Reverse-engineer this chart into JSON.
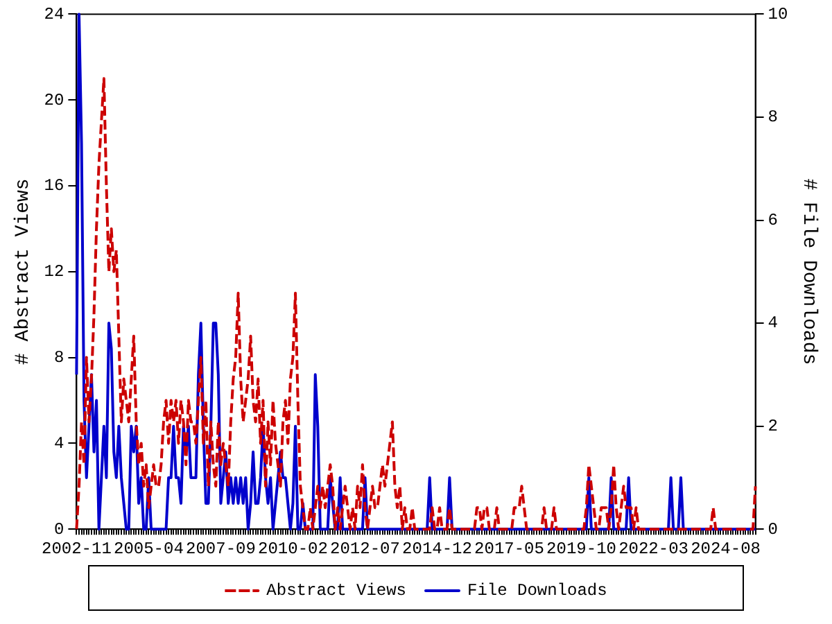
{
  "chart_data": {
    "type": "line",
    "ylabel": "# Abstract Views",
    "y2label": "# File Downloads",
    "categories": [
      "2002-11",
      null,
      null,
      null,
      null,
      null,
      null,
      null,
      null,
      null,
      null,
      null,
      null,
      null,
      null,
      null,
      null,
      null,
      null,
      null,
      null,
      null,
      null,
      null,
      null,
      null,
      null,
      null,
      null,
      "2005-04",
      null,
      null,
      null,
      null,
      null,
      null,
      null,
      null,
      null,
      null,
      null,
      null,
      null,
      null,
      null,
      null,
      null,
      null,
      null,
      null,
      null,
      null,
      null,
      null,
      null,
      null,
      null,
      null,
      "2007-09",
      null,
      null,
      null,
      null,
      null,
      null,
      null,
      null,
      null,
      null,
      null,
      null,
      null,
      null,
      null,
      null,
      null,
      null,
      null,
      null,
      null,
      null,
      null,
      null,
      null,
      null,
      null,
      null,
      "2010-02",
      null,
      null,
      null,
      null,
      null,
      null,
      null,
      null,
      null,
      null,
      null,
      null,
      null,
      null,
      null,
      null,
      null,
      null,
      null,
      null,
      null,
      null,
      null,
      null,
      null,
      null,
      null,
      null,
      "2012-07",
      null,
      null,
      null,
      null,
      null,
      null,
      null,
      null,
      null,
      null,
      null,
      null,
      null,
      null,
      null,
      null,
      null,
      null,
      null,
      null,
      null,
      null,
      null,
      null,
      null,
      null,
      null,
      null,
      "2014-12",
      null,
      null,
      null,
      null,
      null,
      null,
      null,
      null,
      null,
      null,
      null,
      null,
      null,
      null,
      null,
      null,
      null,
      null,
      null,
      null,
      null,
      null,
      null,
      null,
      null,
      null,
      null,
      null,
      "2017-05",
      null,
      null,
      null,
      null,
      null,
      null,
      null,
      null,
      null,
      null,
      null,
      null,
      null,
      null,
      null,
      null,
      null,
      null,
      null,
      null,
      null,
      null,
      null,
      null,
      null,
      null,
      null,
      null,
      "2019-10",
      null,
      null,
      null,
      null,
      null,
      null,
      null,
      null,
      null,
      null,
      null,
      null,
      null,
      null,
      null,
      null,
      null,
      null,
      null,
      null,
      null,
      null,
      null,
      null,
      null,
      null,
      null,
      null,
      "2022-03",
      null,
      null,
      null,
      null,
      null,
      null,
      null,
      null,
      null,
      null,
      null,
      null,
      null,
      null,
      null,
      null,
      null,
      null,
      null,
      null,
      null,
      null,
      null,
      null,
      null,
      null,
      null,
      null,
      "2024-08",
      null,
      null,
      null,
      null,
      null,
      null,
      null,
      null,
      null,
      null,
      null,
      null
    ],
    "series": [
      {
        "name": "Abstract Views",
        "color": "#cc0000",
        "line_style": "dashed",
        "values": [
          0,
          2,
          5,
          3,
          8,
          5,
          7,
          10,
          14,
          17,
          19,
          21,
          16,
          12,
          14,
          12,
          13,
          9,
          5,
          7,
          6,
          5,
          7,
          9,
          5,
          3,
          4,
          2,
          3,
          1,
          2,
          3,
          2,
          2,
          3,
          5,
          6,
          4,
          6,
          5,
          6,
          4,
          6,
          5,
          3,
          6,
          5,
          5,
          4,
          6,
          8,
          4,
          6,
          2,
          5,
          3,
          2,
          5,
          3,
          4,
          3,
          2,
          5,
          7,
          8,
          11,
          7,
          5,
          6,
          7,
          9,
          6,
          5,
          7,
          4,
          6,
          2,
          5,
          3,
          6,
          4,
          3,
          2,
          5,
          6,
          4,
          7,
          8,
          11,
          6,
          2,
          1,
          0,
          0,
          1,
          0,
          1,
          2,
          1,
          2,
          1,
          2,
          3,
          2,
          0,
          1,
          0,
          1,
          2,
          1,
          0,
          1,
          0,
          2,
          1,
          3,
          1,
          0,
          1,
          2,
          1,
          1,
          2,
          3,
          2,
          3,
          4,
          5,
          2,
          1,
          2,
          0,
          1,
          0,
          0,
          1,
          0,
          0,
          0,
          0,
          0,
          0,
          0,
          1,
          0,
          0,
          1,
          0,
          0,
          0,
          1,
          0,
          0,
          0,
          0,
          0,
          0,
          0,
          0,
          0,
          0,
          1,
          1,
          0,
          1,
          1,
          0,
          0,
          0,
          1,
          0,
          0,
          0,
          0,
          0,
          0,
          1,
          1,
          1,
          2,
          1,
          0,
          0,
          0,
          0,
          0,
          0,
          0,
          1,
          0,
          0,
          0,
          1,
          0,
          0,
          0,
          0,
          0,
          0,
          0,
          0,
          0,
          0,
          0,
          0,
          1,
          3,
          2,
          1,
          0,
          0,
          1,
          1,
          1,
          0,
          1,
          3,
          1,
          0,
          1,
          2,
          1,
          1,
          1,
          0,
          1,
          0,
          0,
          0,
          0,
          0,
          0,
          0,
          0,
          0,
          0,
          0,
          0,
          0,
          0,
          0,
          0,
          0,
          0,
          0,
          0,
          0,
          0,
          0,
          0,
          0,
          0,
          0,
          0,
          0,
          0,
          1,
          0,
          0,
          0,
          0,
          0,
          0,
          0,
          0,
          0,
          0,
          0,
          0,
          0,
          0,
          0,
          0,
          2
        ]
      },
      {
        "name": "File Downloads",
        "color": "#0000cc",
        "line_style": "solid",
        "axis": "y2",
        "values": [
          3,
          10,
          7.5,
          2.5,
          1,
          2,
          3,
          1.5,
          2.5,
          0,
          1,
          2,
          1,
          4,
          3.5,
          1.5,
          1,
          2,
          1,
          0.5,
          0,
          0,
          2,
          1.5,
          2,
          0.5,
          1,
          0,
          0,
          1,
          0,
          0,
          0,
          0,
          0,
          0,
          0,
          1,
          1,
          2,
          1,
          1,
          0.5,
          2,
          1.5,
          2,
          1,
          1,
          1,
          3,
          4,
          2,
          0.5,
          0.5,
          2,
          4,
          4,
          3,
          0.5,
          1,
          1.5,
          0.5,
          1,
          0.5,
          1,
          0.5,
          1,
          0.5,
          1,
          0,
          0.5,
          1.5,
          0.5,
          0.5,
          1,
          2,
          1,
          0.5,
          1,
          0,
          0.5,
          1,
          1.5,
          1,
          1,
          0.5,
          0,
          0.5,
          2,
          0,
          0,
          0.5,
          0,
          0,
          0,
          0,
          3,
          2,
          0,
          0,
          0,
          0,
          1,
          0.5,
          0,
          0,
          1,
          0,
          0,
          0,
          0,
          0,
          0,
          0,
          0,
          0,
          1,
          0,
          0,
          0,
          0,
          0,
          0,
          0,
          0,
          0,
          0,
          0,
          0,
          0,
          0,
          0,
          0,
          0,
          0,
          0,
          0,
          0,
          0,
          0,
          0,
          0,
          1,
          0,
          0,
          0,
          0,
          0,
          0,
          0,
          1,
          0,
          0,
          0,
          0,
          0,
          0,
          0,
          0,
          0,
          0,
          0,
          0,
          0,
          0,
          0,
          0,
          0,
          0,
          0,
          0,
          0,
          0,
          0,
          0,
          0,
          0,
          0,
          0,
          0,
          0,
          0,
          0,
          0,
          0,
          0,
          0,
          0,
          0,
          0,
          0,
          0,
          0,
          0,
          0,
          0,
          0,
          0,
          0,
          0,
          0,
          0,
          0,
          0,
          0,
          0,
          1,
          0,
          0,
          0,
          0,
          0,
          0,
          0,
          0,
          1,
          0,
          0,
          0,
          0,
          0,
          0,
          1,
          0,
          0,
          0,
          0,
          0,
          0,
          0,
          0,
          0,
          0,
          0,
          0,
          0,
          0,
          0,
          0,
          1,
          0,
          0,
          0,
          1,
          0,
          0,
          0,
          0,
          0,
          0,
          0,
          0,
          0,
          0,
          0,
          0,
          0,
          0,
          0,
          0,
          0,
          0,
          0,
          0,
          0,
          0,
          0,
          0,
          0,
          0,
          0,
          0,
          0,
          0
        ]
      }
    ],
    "ylim": [
      0,
      24
    ],
    "yticks": [
      0,
      4,
      8,
      12,
      16,
      20,
      24
    ],
    "y2lim": [
      0,
      10
    ],
    "y2ticks": [
      0,
      2,
      4,
      6,
      8,
      10
    ],
    "grid": false,
    "legend": "bottom",
    "marker": "none"
  }
}
